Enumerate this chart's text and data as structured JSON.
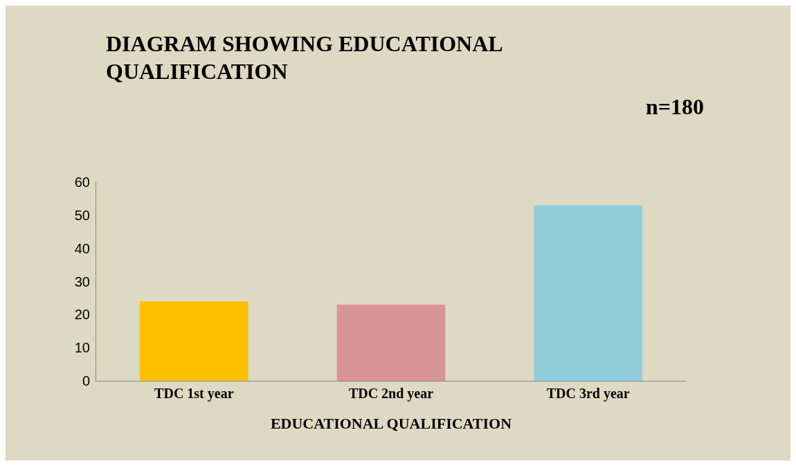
{
  "chart_data": {
    "type": "bar",
    "title": "DIAGRAM SHOWING EDUCATIONAL QUALIFICATION",
    "subtitle": "n=180",
    "xlabel": "EDUCATIONAL QUALIFICATION",
    "categories": [
      "TDC 1st year",
      "TDC 2nd year",
      "TDC 3rd year"
    ],
    "values": [
      24,
      23,
      53
    ],
    "colors": [
      "#ffc000",
      "#d99594",
      "#92cddc"
    ],
    "ylim": [
      0,
      60
    ],
    "yticks": [
      0,
      10,
      20,
      30,
      40,
      50,
      60
    ],
    "grid": false
  }
}
